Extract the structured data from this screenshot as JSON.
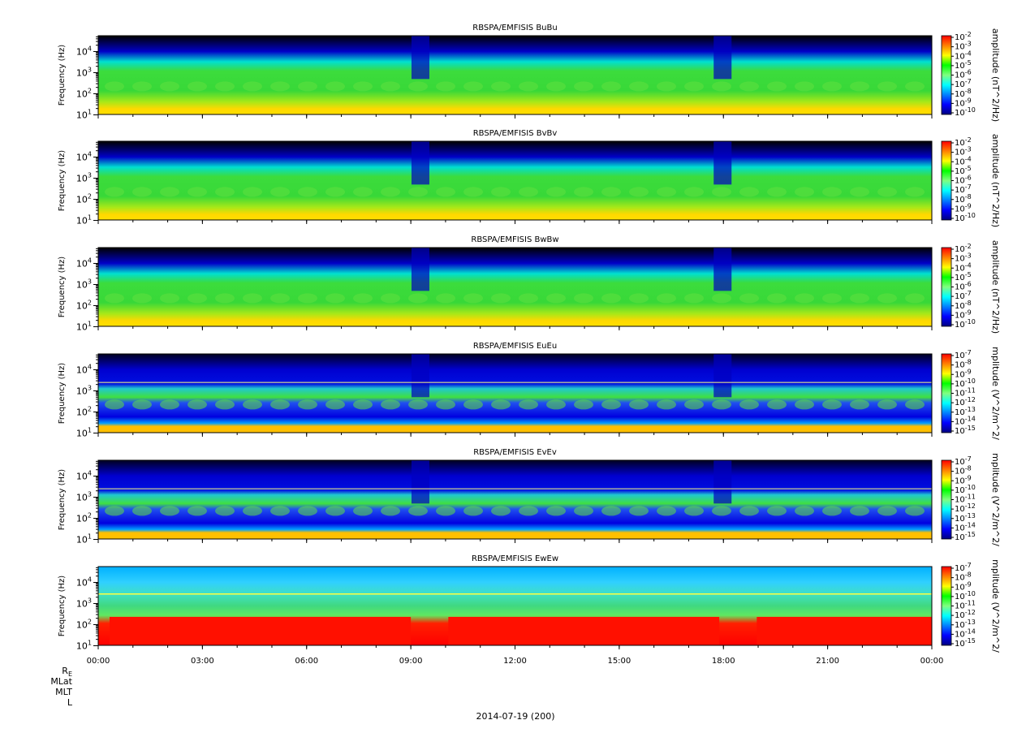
{
  "figure": {
    "date_label": "2014-07-19 (200)",
    "orbit_rows": [
      {
        "label": "R",
        "subscript": "E"
      },
      {
        "label": "MLat"
      },
      {
        "label": "MLT"
      },
      {
        "label": "L"
      }
    ],
    "x_ticks": [
      "00:00",
      "03:00",
      "06:00",
      "09:00",
      "12:00",
      "15:00",
      "18:00",
      "21:00",
      "00:00"
    ]
  },
  "colors": {
    "colormap": [
      "#000080",
      "#0000ff",
      "#0080ff",
      "#00ffff",
      "#80ff80",
      "#00ff00",
      "#ffff00",
      "#ff8000",
      "#ff0000"
    ],
    "background_black": "#000000"
  },
  "chart_data": [
    {
      "type": "heatmap",
      "title": "RBSPA/EMFISIS  BuBu",
      "ylabel": "Frequency (Hz)",
      "yscale": "log",
      "y_ticks": [
        {
          "base": "10",
          "exp": "1"
        },
        {
          "base": "10",
          "exp": "2"
        },
        {
          "base": "10",
          "exp": "3"
        },
        {
          "base": "10",
          "exp": "4"
        }
      ],
      "colorbar_label": "amplitude (nT^2/Hz)",
      "colorbar_ticks": [
        "-2",
        "-3",
        "-4",
        "-5",
        "-6",
        "-7",
        "-8",
        "-9",
        "-10"
      ],
      "style": "magnetic"
    },
    {
      "type": "heatmap",
      "title": "RBSPA/EMFISIS  BvBv",
      "ylabel": "Frequency (Hz)",
      "yscale": "log",
      "y_ticks": [
        {
          "base": "10",
          "exp": "1"
        },
        {
          "base": "10",
          "exp": "2"
        },
        {
          "base": "10",
          "exp": "3"
        },
        {
          "base": "10",
          "exp": "4"
        }
      ],
      "colorbar_label": "amplitude (nT^2/Hz)",
      "colorbar_ticks": [
        "-2",
        "-3",
        "-4",
        "-5",
        "-6",
        "-7",
        "-8",
        "-9",
        "-10"
      ],
      "style": "magnetic"
    },
    {
      "type": "heatmap",
      "title": "RBSPA/EMFISIS  BwBw",
      "ylabel": "Frequency (Hz)",
      "yscale": "log",
      "y_ticks": [
        {
          "base": "10",
          "exp": "1"
        },
        {
          "base": "10",
          "exp": "2"
        },
        {
          "base": "10",
          "exp": "3"
        },
        {
          "base": "10",
          "exp": "4"
        }
      ],
      "colorbar_label": "amplitude (nT^2/Hz)",
      "colorbar_ticks": [
        "-2",
        "-3",
        "-4",
        "-5",
        "-6",
        "-7",
        "-8",
        "-9",
        "-10"
      ],
      "style": "magnetic"
    },
    {
      "type": "heatmap",
      "title": "RBSPA/EMFISIS  EuEu",
      "ylabel": "Frequency (Hz)",
      "yscale": "log",
      "y_ticks": [
        {
          "base": "10",
          "exp": "1"
        },
        {
          "base": "10",
          "exp": "2"
        },
        {
          "base": "10",
          "exp": "3"
        },
        {
          "base": "10",
          "exp": "4"
        }
      ],
      "colorbar_label": "mplitude (V^2/m^2/",
      "colorbar_ticks": [
        "-7",
        "-8",
        "-9",
        "-10",
        "-11",
        "-12",
        "-13",
        "-14",
        "-15"
      ],
      "style": "electric"
    },
    {
      "type": "heatmap",
      "title": "RBSPA/EMFISIS  EvEv",
      "ylabel": "Frequency (Hz)",
      "yscale": "log",
      "y_ticks": [
        {
          "base": "10",
          "exp": "1"
        },
        {
          "base": "10",
          "exp": "2"
        },
        {
          "base": "10",
          "exp": "3"
        },
        {
          "base": "10",
          "exp": "4"
        }
      ],
      "colorbar_label": "mplitude (V^2/m^2/",
      "colorbar_ticks": [
        "-7",
        "-8",
        "-9",
        "-10",
        "-11",
        "-12",
        "-13",
        "-14",
        "-15"
      ],
      "style": "electric"
    },
    {
      "type": "heatmap",
      "title": "RBSPA/EMFISIS  EwEw",
      "ylabel": "Frequency (Hz)",
      "yscale": "log",
      "y_ticks": [
        {
          "base": "10",
          "exp": "1"
        },
        {
          "base": "10",
          "exp": "2"
        },
        {
          "base": "10",
          "exp": "3"
        },
        {
          "base": "10",
          "exp": "4"
        }
      ],
      "colorbar_label": "mplitude (V^2/m^2/",
      "colorbar_ticks": [
        "-7",
        "-8",
        "-9",
        "-10",
        "-11",
        "-12",
        "-13",
        "-14",
        "-15"
      ],
      "style": "axial"
    }
  ]
}
